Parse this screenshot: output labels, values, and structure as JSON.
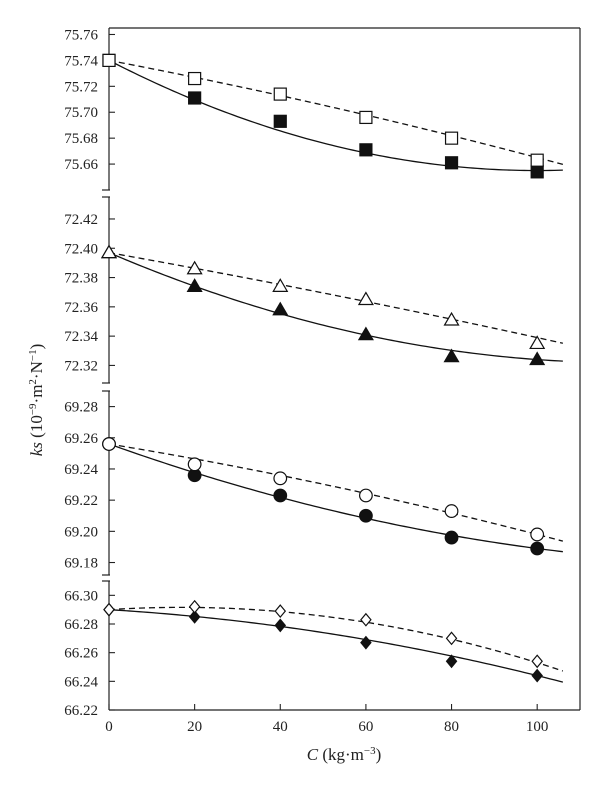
{
  "chart_data": {
    "type": "scatter",
    "ylabel": {
      "main": "ks",
      "open": " (10",
      "exp1": "−9",
      "mid": "·m",
      "exp2": "2",
      "dot": "·N",
      "exp3": "−1",
      "close": ")"
    },
    "xlabel": {
      "main": "C",
      "open": " (kg·m",
      "exp": "−3",
      "close": ")"
    },
    "x_ticks": [
      "0",
      "20",
      "40",
      "60",
      "80",
      "100"
    ],
    "xlim": [
      0,
      110
    ],
    "grid": false,
    "legend": "none",
    "panels": [
      {
        "ylim": [
          75.64,
          75.765
        ],
        "y_ticks": [
          "75.76",
          "75.74",
          "75.72",
          "75.70",
          "75.68",
          "75.66"
        ],
        "y_tick_values": [
          75.76,
          75.74,
          75.72,
          75.7,
          75.68,
          75.66
        ],
        "series": [
          {
            "marker": "square",
            "filled": true,
            "line": "solid",
            "x": [
              0,
              20,
              40,
              60,
              80,
              100
            ],
            "y": [
              75.74,
              75.711,
              75.693,
              75.671,
              75.661,
              75.654
            ],
            "fit": [
              75.74,
              -0.0017,
              8.5e-06
            ]
          },
          {
            "marker": "square",
            "filled": false,
            "line": "dashed",
            "x": [
              0,
              20,
              40,
              60,
              80,
              100
            ],
            "y": [
              75.74,
              75.726,
              75.714,
              75.696,
              75.68,
              75.663
            ],
            "fit": [
              75.74,
              -0.00063,
              -1.2e-06
            ]
          }
        ]
      },
      {
        "ylim": [
          72.308,
          72.435
        ],
        "y_ticks": [
          "72.42",
          "72.40",
          "72.38",
          "72.36",
          "72.34",
          "72.32"
        ],
        "y_tick_values": [
          72.42,
          72.4,
          72.38,
          72.36,
          72.34,
          72.32
        ],
        "series": [
          {
            "marker": "triangle",
            "filled": true,
            "line": "solid",
            "x": [
              0,
              20,
              40,
              60,
              80,
              100
            ],
            "y": [
              72.397,
              72.374,
              72.358,
              72.341,
              72.326,
              72.324
            ],
            "fit": [
              72.397,
              -0.00125,
              5.2e-06
            ]
          },
          {
            "marker": "triangle",
            "filled": false,
            "line": "dashed",
            "x": [
              0,
              20,
              40,
              60,
              80,
              100
            ],
            "y": [
              72.397,
              72.386,
              72.374,
              72.365,
              72.351,
              72.335
            ],
            "fit": [
              72.397,
              -0.00052,
              -6e-07
            ]
          }
        ]
      },
      {
        "ylim": [
          69.172,
          69.29
        ],
        "y_ticks": [
          "69.28",
          "69.26",
          "69.24",
          "69.22",
          "69.20",
          "69.18"
        ],
        "y_tick_values": [
          69.28,
          69.26,
          69.24,
          69.22,
          69.2,
          69.18
        ],
        "series": [
          {
            "marker": "circle",
            "filled": true,
            "line": "solid",
            "x": [
              0,
              20,
              40,
              60,
              80,
              100
            ],
            "y": [
              69.256,
              69.236,
              69.223,
              69.21,
              69.196,
              69.189
            ],
            "fit": [
              69.256,
              -0.00098,
              3.1e-06
            ]
          },
          {
            "marker": "circle",
            "filled": false,
            "line": "dashed",
            "x": [
              0,
              20,
              40,
              60,
              80,
              100
            ],
            "y": [
              69.256,
              69.243,
              69.234,
              69.223,
              69.213,
              69.198
            ],
            "fit": [
              69.256,
              -0.00045,
              -1.3e-06
            ]
          }
        ]
      },
      {
        "ylim": [
          66.22,
          66.31
        ],
        "y_ticks": [
          "66.30",
          "66.28",
          "66.26",
          "66.24",
          "66.22"
        ],
        "y_tick_values": [
          66.3,
          66.28,
          66.26,
          66.24,
          66.22
        ],
        "series": [
          {
            "marker": "diamond",
            "filled": true,
            "line": "solid",
            "x": [
              0,
              20,
              40,
              60,
              80,
              100
            ],
            "y": [
              66.29,
              66.285,
              66.279,
              66.267,
              66.254,
              66.244
            ],
            "fit": [
              66.29,
              -0.00018,
              -2.8e-06
            ]
          },
          {
            "marker": "diamond",
            "filled": false,
            "line": "dashed",
            "x": [
              0,
              20,
              40,
              60,
              80,
              100
            ],
            "y": [
              66.29,
              66.292,
              66.289,
              66.283,
              66.27,
              66.254
            ],
            "fit": [
              66.29,
              0.00019,
              -5.6e-06
            ]
          }
        ]
      }
    ]
  }
}
